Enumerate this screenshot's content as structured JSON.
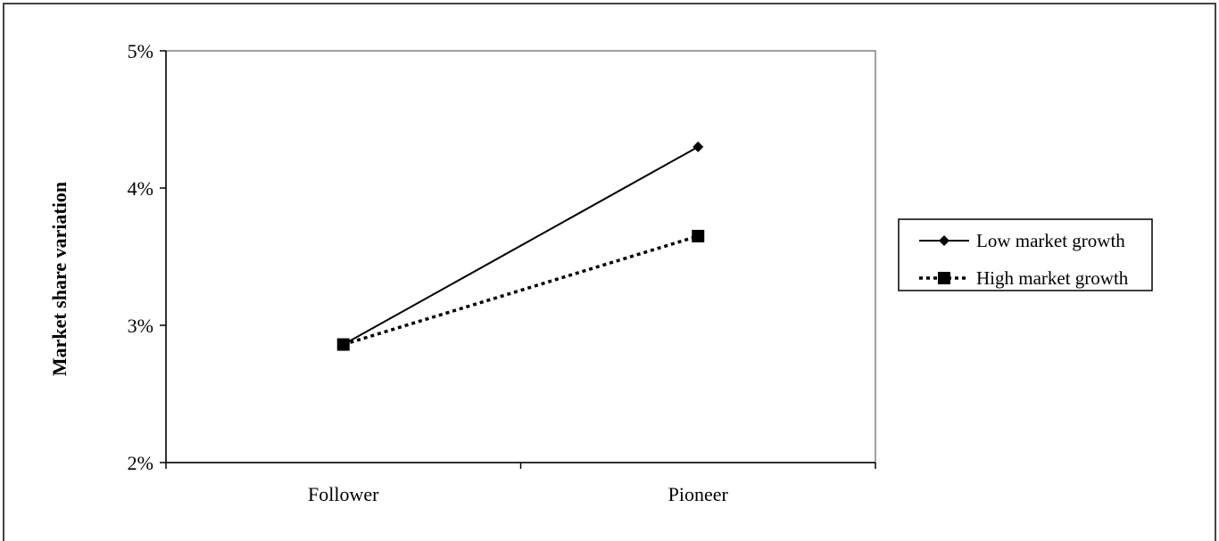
{
  "chart_data": {
    "type": "line",
    "title": "",
    "xlabel": "",
    "ylabel": "Market share variation",
    "categories": [
      "Follower",
      "Pioneer"
    ],
    "ylim": [
      0.02,
      0.05
    ],
    "yticks": [
      0.02,
      0.03,
      0.04,
      0.05
    ],
    "ytick_labels": [
      "2%",
      "3%",
      "4%",
      "5%"
    ],
    "grid": false,
    "legend_position": "right",
    "series": [
      {
        "name": "Low market growth",
        "values": [
          0.0286,
          0.043
        ],
        "line_style": "solid",
        "marker": "diamond",
        "color": "#000000"
      },
      {
        "name": "High market growth",
        "values": [
          0.0286,
          0.0365
        ],
        "line_style": "dotted",
        "marker": "square",
        "color": "#000000"
      }
    ]
  }
}
